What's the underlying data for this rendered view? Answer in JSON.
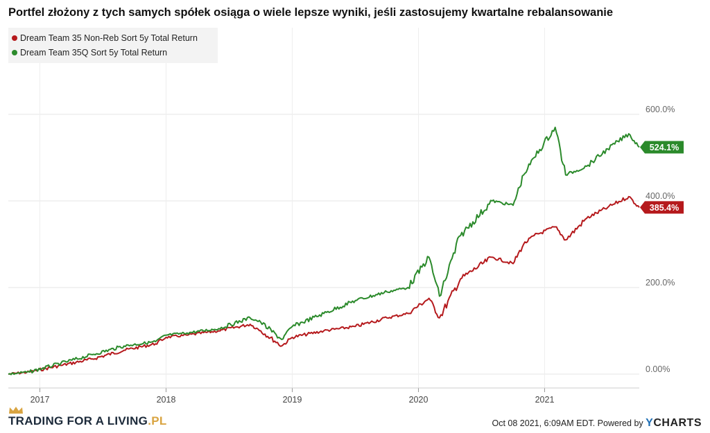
{
  "chart_data": {
    "type": "line",
    "title": "Portfel złożony z tych samych spółek osiąga o wiele lepsze wyniki, jeśli zastosujemy kwartalne rebalansowanie",
    "x_ticks": [
      "2017",
      "2018",
      "2019",
      "2020",
      "2021"
    ],
    "y_ticks": [
      "0.00%",
      "200.0%",
      "400.0%",
      "600.0%"
    ],
    "ylim": [
      -30,
      760
    ],
    "grid": true,
    "legend_position": "top-left",
    "series": [
      {
        "name": "Dream Team 35 Non-Reb Sort 5y Total Return",
        "color": "#b5191c",
        "end_label": "385.4%",
        "x": [
          "2016-10",
          "2016-12",
          "2017-03",
          "2017-06",
          "2017-09",
          "2017-12",
          "2018-01",
          "2018-03",
          "2018-06",
          "2018-09",
          "2018-10",
          "2018-12",
          "2019-01",
          "2019-04",
          "2019-07",
          "2019-10",
          "2019-12",
          "2020-02",
          "2020-03",
          "2020-05",
          "2020-08",
          "2020-10",
          "2020-11",
          "2020-12",
          "2021-02",
          "2021-03",
          "2021-05",
          "2021-07",
          "2021-09",
          "2021-10"
        ],
        "values": [
          0,
          5,
          20,
          35,
          55,
          70,
          85,
          90,
          100,
          115,
          100,
          65,
          85,
          100,
          110,
          130,
          140,
          175,
          130,
          220,
          270,
          255,
          300,
          320,
          340,
          310,
          360,
          385,
          410,
          385
        ]
      },
      {
        "name": "Dream Team 35Q Sort 5y Total Return",
        "color": "#2b8a2b",
        "end_label": "524.1%",
        "x": [
          "2016-10",
          "2016-12",
          "2017-03",
          "2017-06",
          "2017-09",
          "2017-12",
          "2018-01",
          "2018-03",
          "2018-06",
          "2018-09",
          "2018-10",
          "2018-12",
          "2019-01",
          "2019-04",
          "2019-07",
          "2019-10",
          "2019-12",
          "2020-02",
          "2020-03",
          "2020-05",
          "2020-08",
          "2020-10",
          "2020-11",
          "2020-12",
          "2021-02",
          "2021-03",
          "2021-05",
          "2021-07",
          "2021-09",
          "2021-10"
        ],
        "values": [
          0,
          5,
          25,
          45,
          65,
          75,
          90,
          95,
          105,
          130,
          120,
          80,
          110,
          140,
          170,
          190,
          200,
          270,
          180,
          320,
          400,
          390,
          460,
          500,
          570,
          460,
          480,
          520,
          555,
          524
        ]
      }
    ]
  },
  "brand": {
    "name": "TRADING FOR A LIVING",
    "suffix": ".PL"
  },
  "footer": {
    "credit": "Oct 08 2021, 6:09AM EDT. Powered by ",
    "logo_y": "Y",
    "logo_rest": "CHARTS"
  }
}
